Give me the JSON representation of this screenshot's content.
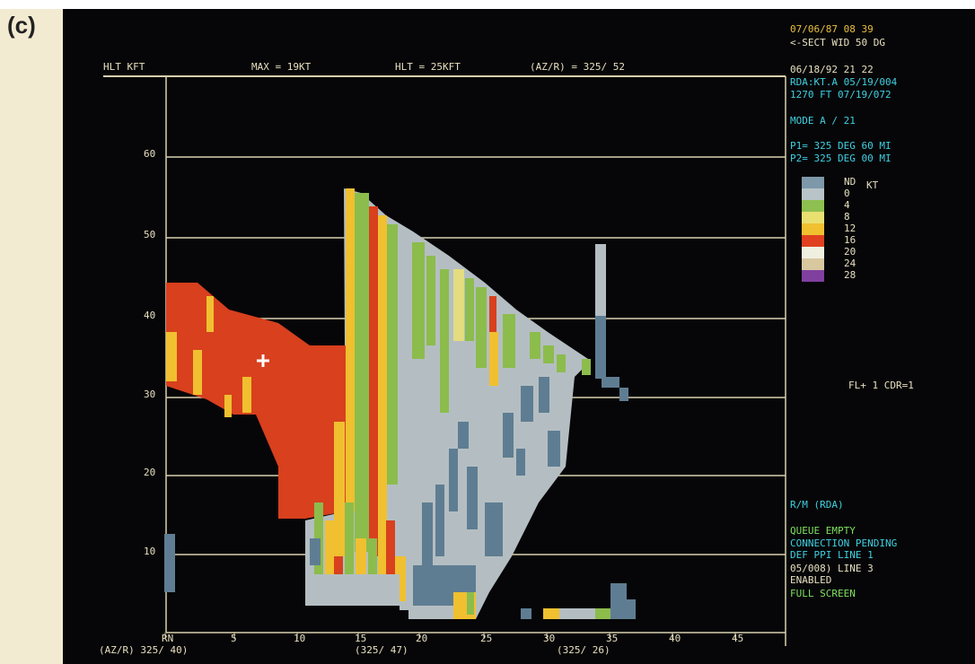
{
  "panel_label": "(c)",
  "top_bar": [
    "HLT KFT",
    "MAX = 19KT",
    "HLT = 25KFT",
    "(AZ/R) = 325/ 52"
  ],
  "status_top": [
    "07/06/87 08 39",
    "<-SECT WID 50 DG",
    "06/18/92 21 22",
    "RDA:KT.A 05/19/004",
    "1270 FT 07/19/072",
    "MODE A /  21",
    "P1= 325 DEG  60 MI",
    "P2= 325 DEG  00 MI"
  ],
  "legend": {
    "unit": "KT",
    "levels": [
      "ND",
      "0",
      "4",
      "8",
      "12",
      "16",
      "20",
      "24",
      "28"
    ]
  },
  "info": "FL+ 1 CDR=1",
  "status_bottom": [
    "R/M (RDA)",
    "QUEUE EMPTY",
    "CONNECTION PENDING",
    "DEF PPI LINE 1",
    "05/008) LINE 3",
    "ENABLED",
    "FULL SCREEN"
  ],
  "y_labels": [
    "60",
    "50",
    "40",
    "30",
    "20",
    "10"
  ],
  "x_labels": [
    "RN",
    "5",
    "10",
    "15",
    "20",
    "25",
    "30",
    "35",
    "40",
    "45"
  ],
  "bottom_bar": [
    "(AZ/R) 325/ 40)",
    "(325/ 47)",
    "(325/ 26)"
  ]
}
